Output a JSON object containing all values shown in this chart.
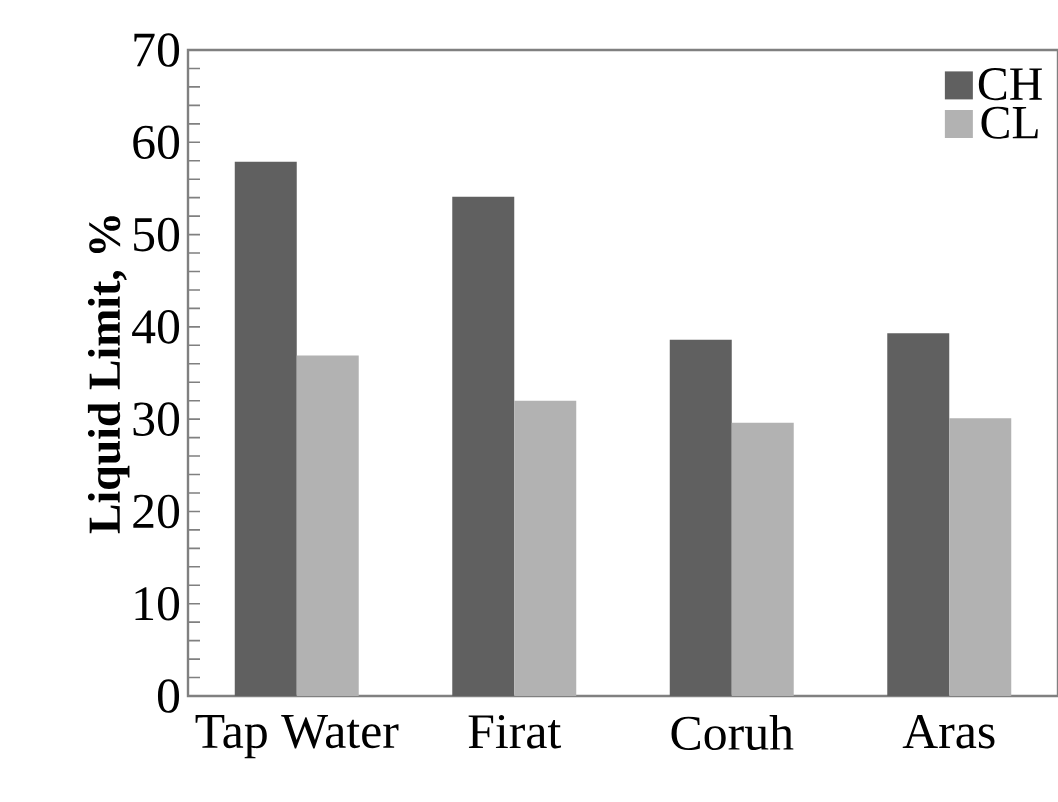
{
  "chart_data": {
    "type": "bar",
    "ylabel": "Liquid Limit, %",
    "categories": [
      "Tap Water",
      "Firat",
      "Coruh",
      "Aras"
    ],
    "series": [
      {
        "name": "CH",
        "color": "#606060",
        "values": [
          57.9,
          54.1,
          38.6,
          39.3
        ]
      },
      {
        "name": "CL",
        "color": "#b2b2b2",
        "values": [
          36.9,
          32.0,
          29.6,
          30.1
        ]
      }
    ],
    "ylim": [
      0,
      70
    ],
    "yticks": [
      0,
      10,
      20,
      30,
      40,
      50,
      60,
      70
    ],
    "grid": false,
    "legend": "top right"
  }
}
